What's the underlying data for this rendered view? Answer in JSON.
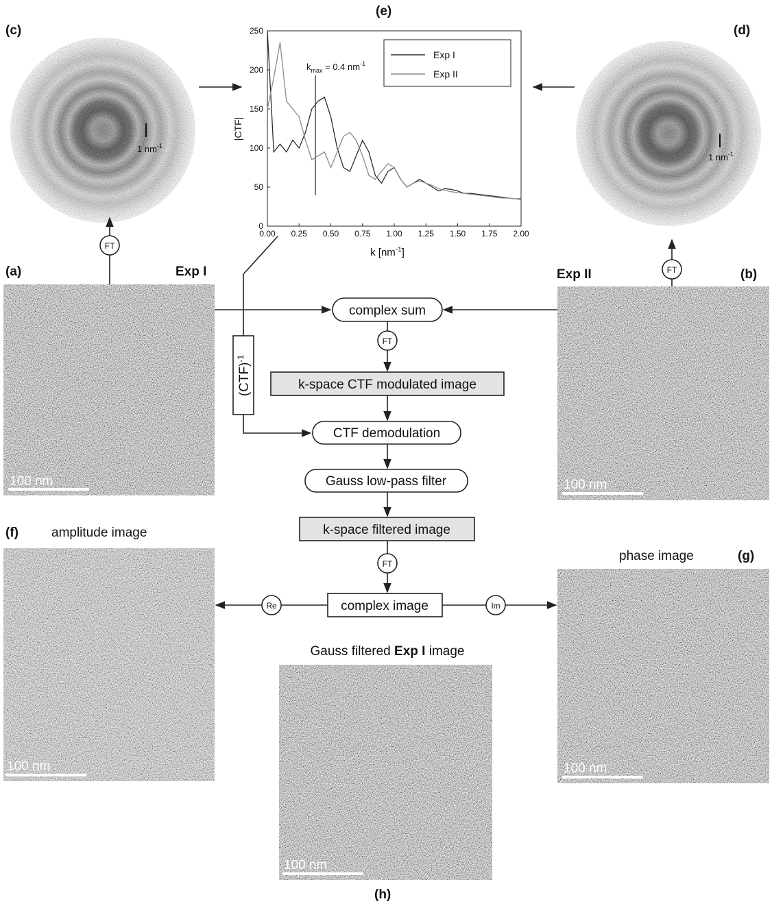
{
  "panels": {
    "a": "(a)",
    "b": "(b)",
    "c": "(c)",
    "d": "(d)",
    "e": "(e)",
    "f": "(f)",
    "g": "(g)",
    "h": "(h)"
  },
  "experiments": {
    "exp1": "Exp I",
    "exp2": "Exp II"
  },
  "captions": {
    "amplitude": "amplitude image",
    "phase": "phase image",
    "gauss_prefix": "Gauss filtered",
    "gauss_bold": "Exp I",
    "gauss_suffix": "image"
  },
  "scale_bar": "100 nm",
  "diffraction_scale": {
    "base": "1 nm",
    "exp": "-1"
  },
  "flow": {
    "complex_sum": "complex sum",
    "ft": "FT",
    "kspace_ctf": "k-space CTF modulated image",
    "ctf_demod": "CTF demodulation",
    "gauss_filter": "Gauss low-pass filter",
    "kspace_filtered": "k-space filtered image",
    "complex_image": "complex image",
    "re": "Re",
    "im": "Im",
    "inverse_ctf": {
      "base": "(CTF)",
      "exp": "-1"
    }
  },
  "chart_data": {
    "type": "line",
    "y_label": "|CTF|",
    "x_label": {
      "base": "k [nm",
      "exp": "-1",
      "end": "]"
    },
    "annotation": {
      "k": "k",
      "sub": "max",
      "text": " = 0.4 nm",
      "exp": "-1"
    },
    "x": [
      0,
      0.05,
      0.1,
      0.15,
      0.2,
      0.25,
      0.3,
      0.35,
      0.4,
      0.45,
      0.5,
      0.55,
      0.6,
      0.65,
      0.7,
      0.75,
      0.8,
      0.85,
      0.9,
      0.95,
      1.0,
      1.05,
      1.1,
      1.15,
      1.2,
      1.25,
      1.3,
      1.35,
      1.4,
      1.45,
      1.5,
      1.55,
      1.6,
      1.65,
      1.7,
      1.75,
      1.8,
      1.85,
      1.9,
      1.95,
      2.0
    ],
    "series": [
      {
        "name": "Exp I",
        "color": "#2a2a2a",
        "values": [
          250,
          95,
          105,
          95,
          110,
          100,
          120,
          150,
          160,
          165,
          140,
          100,
          75,
          70,
          90,
          110,
          95,
          65,
          55,
          70,
          75,
          60,
          50,
          55,
          60,
          55,
          50,
          45,
          48,
          47,
          45,
          42,
          42,
          41,
          40,
          39,
          38,
          37,
          36,
          35,
          35
        ]
      },
      {
        "name": "Exp II",
        "color": "#8a8a8a",
        "values": [
          150,
          190,
          235,
          160,
          150,
          140,
          110,
          85,
          90,
          95,
          75,
          95,
          115,
          120,
          110,
          90,
          65,
          60,
          70,
          80,
          75,
          60,
          50,
          55,
          58,
          55,
          52,
          48,
          46,
          44,
          43,
          42,
          41,
          40,
          39,
          38,
          37,
          36,
          36,
          35,
          34
        ]
      }
    ],
    "xlim": [
      0,
      2
    ],
    "ylim": [
      0,
      250
    ],
    "xticks": [
      {
        "value": 0,
        "label": "0.00"
      },
      {
        "value": 0.25,
        "label": "0.25"
      },
      {
        "value": 0.5,
        "label": "0.50"
      },
      {
        "value": 0.75,
        "label": "0.75"
      },
      {
        "value": 1,
        "label": "1.00"
      },
      {
        "value": 1.25,
        "label": "1.25"
      },
      {
        "value": 1.5,
        "label": "1.50"
      },
      {
        "value": 1.75,
        "label": "1.75"
      },
      {
        "value": 2,
        "label": "2.00"
      }
    ],
    "yticks": [
      0,
      50,
      100,
      150,
      200,
      250
    ]
  }
}
